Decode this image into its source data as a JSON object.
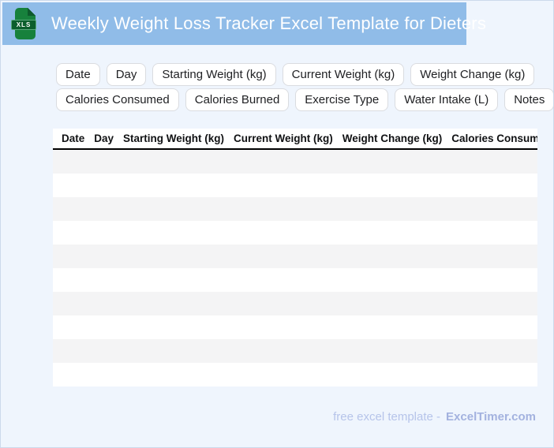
{
  "header": {
    "title": "Weekly Weight Loss Tracker Excel Template for Dieters",
    "file_badge": "XLS"
  },
  "chips": {
    "row1": [
      "Date",
      "Day",
      "Starting Weight (kg)",
      "Current Weight (kg)",
      "Weight Change (kg)"
    ],
    "row2": [
      "Calories Consumed",
      "Calories Burned",
      "Exercise Type",
      "Water Intake (L)",
      "Notes"
    ]
  },
  "table": {
    "columns": [
      "Date",
      "Day",
      "Starting Weight (kg)",
      "Current Weight (kg)",
      "Weight Change (kg)",
      "Calories Consumed"
    ],
    "row_count": 10
  },
  "footer": {
    "prefix": "free excel template -",
    "brand": "ExcelTimer.com"
  },
  "colors": {
    "header_band": "#90bce8",
    "page_bg": "#eff5fd",
    "page_border": "#ccd9ec",
    "row_stripe": "#f4f4f5",
    "chip_border": "#dadce0",
    "icon_green": "#17813c",
    "icon_dark_green": "#0b5e2d",
    "icon_fold": "#0d5a2c",
    "header_underline": "#000000",
    "footer_text": "#b6c4ea",
    "footer_brand": "#a3b2df"
  }
}
